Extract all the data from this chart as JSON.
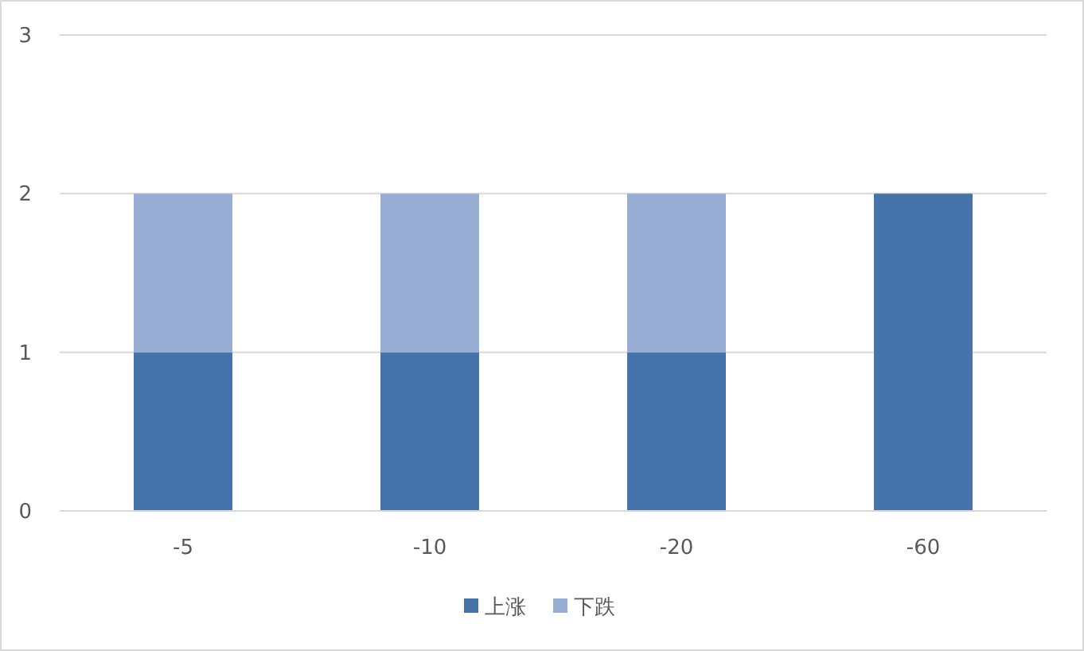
{
  "chart_data": {
    "type": "bar",
    "stacked": true,
    "categories": [
      "-5",
      "-10",
      "-20",
      "-60"
    ],
    "series": [
      {
        "name": "上涨",
        "color": "#4674aa",
        "values": [
          1,
          1,
          1,
          2
        ]
      },
      {
        "name": "下跌",
        "color": "#98aed4",
        "values": [
          1,
          1,
          1,
          0
        ]
      }
    ],
    "ylim": [
      0,
      3
    ],
    "yticks": [
      0,
      1,
      2,
      3
    ],
    "grid": "y",
    "legend": "bottom"
  }
}
